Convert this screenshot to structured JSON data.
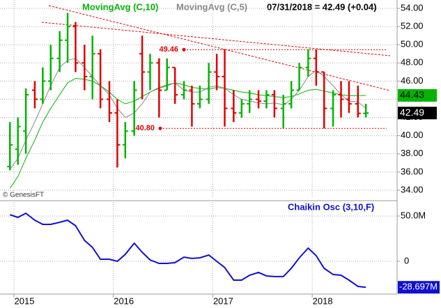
{
  "chart_data": [
    {
      "type": "ohlc",
      "ma_long_title": "MovingAvg (C,10)",
      "ma_short_title": "MovingAvg (C,5)",
      "quote": "07/31/2018 = 42.49 (+0.04)",
      "credit": "© GenesisFT",
      "x": [
        2014.96,
        2015.04,
        2015.12,
        2015.21,
        2015.29,
        2015.37,
        2015.46,
        2015.54,
        2015.62,
        2015.71,
        2015.79,
        2015.87,
        2015.96,
        2016.04,
        2016.12,
        2016.21,
        2016.29,
        2016.37,
        2016.46,
        2016.54,
        2016.62,
        2016.71,
        2016.79,
        2016.87,
        2016.96,
        2017.04,
        2017.12,
        2017.21,
        2017.29,
        2017.37,
        2017.46,
        2017.54,
        2017.62,
        2017.71,
        2017.79,
        2017.87,
        2017.96,
        2018.04,
        2018.12,
        2018.21,
        2018.29,
        2018.37,
        2018.46,
        2018.54
      ],
      "open": [
        36.6,
        38.5,
        40.5,
        45.0,
        44.0,
        46.0,
        48.5,
        50.5,
        52.0,
        48.0,
        46.5,
        49.0,
        44.0,
        42.5,
        39.0,
        40.5,
        49.0,
        47.0,
        48.0,
        45.0,
        47.5,
        44.5,
        45.0,
        43.5,
        44.0,
        47.0,
        46.5,
        43.0,
        42.5,
        43.5,
        44.0,
        43.8,
        44.5,
        43.0,
        43.5,
        45.0,
        47.5,
        48.5,
        47.0,
        43.0,
        44.5,
        44.0,
        43.5,
        42.45
      ],
      "high": [
        41.5,
        42.0,
        45.2,
        46.0,
        47.5,
        50.0,
        51.5,
        53.5,
        52.5,
        50.0,
        51.0,
        49.5,
        46.0,
        44.0,
        41.5,
        46.0,
        51.0,
        49.0,
        48.5,
        48.5,
        47.5,
        46.0,
        45.5,
        45.5,
        48.0,
        49.0,
        49.5,
        45.0,
        44.0,
        45.0,
        45.0,
        45.0,
        45.0,
        44.5,
        46.0,
        48.0,
        49.5,
        49.46,
        47.0,
        45.0,
        46.0,
        46.0,
        45.5,
        43.5
      ],
      "low": [
        36.2,
        36.8,
        38.0,
        43.0,
        43.5,
        45.0,
        47.0,
        48.0,
        47.0,
        45.0,
        44.0,
        43.0,
        41.5,
        36.5,
        37.5,
        40.0,
        44.0,
        45.0,
        42.0,
        45.0,
        43.5,
        44.0,
        41.0,
        43.0,
        43.5,
        45.0,
        41.0,
        41.5,
        42.0,
        42.5,
        43.0,
        43.0,
        42.0,
        40.8,
        43.0,
        45.0,
        46.5,
        45.5,
        40.8,
        41.0,
        42.0,
        42.5,
        42.0,
        42.0
      ],
      "close": [
        39.0,
        41.0,
        44.5,
        44.0,
        46.0,
        48.5,
        50.5,
        52.0,
        48.0,
        46.5,
        49.0,
        44.0,
        42.5,
        39.0,
        40.5,
        45.0,
        47.0,
        48.0,
        45.0,
        47.5,
        44.5,
        45.0,
        43.5,
        44.0,
        47.0,
        46.5,
        43.0,
        42.5,
        43.5,
        44.0,
        43.8,
        44.5,
        43.0,
        43.5,
        45.0,
        47.5,
        48.5,
        47.0,
        43.0,
        44.5,
        44.0,
        43.5,
        42.45,
        42.49
      ],
      "up_color": "#00b400",
      "down_color": "#e00000",
      "series": [
        {
          "name": "MovingAvg (C,10)",
          "color": "#00b400",
          "values": [
            34.2,
            35.5,
            37.5,
            39.5,
            41.5,
            43,
            44.5,
            45.8,
            46.3,
            46.2,
            46,
            45.5,
            44.8,
            44,
            43.5,
            43.8,
            44.3,
            44.8,
            45.2,
            45.5,
            45.8,
            45.6,
            45.3,
            45.2,
            45.1,
            45.3,
            45.2,
            45,
            44.8,
            44.7,
            44.5,
            44.4,
            44.3,
            44.2,
            44.3,
            44.6,
            45,
            45.1,
            44.9,
            44.7,
            44.5,
            44.4,
            44.4,
            44.43
          ]
        },
        {
          "name": "MovingAvg (C,5)",
          "color": "#888888",
          "values": [
            36.3,
            37.5,
            39.5,
            41.5,
            43.5,
            45.5,
            47.5,
            48.3,
            48.5,
            47.5,
            46.5,
            45.5,
            44.5,
            43,
            42,
            42.5,
            43.5,
            44.8,
            45.3,
            45.6,
            45.8,
            45,
            44.8,
            44.8,
            45.3,
            45.5,
            45.2,
            44.5,
            44,
            43.8,
            43.6,
            43.5,
            43.6,
            43.4,
            44,
            45,
            46.5,
            47.2,
            46.5,
            45.5,
            44.5,
            43.8,
            43.7,
            43
          ]
        }
      ],
      "levels": [
        49.46,
        {
          "value": 40.8,
          "label": "40.80"
        }
      ],
      "level_color": "#e00000",
      "xlim": [
        2014.86,
        2018.854
      ],
      "xticks": [
        2015,
        2016,
        2017,
        2018
      ],
      "ylim": [
        33.08,
        54.92
      ],
      "yticks": [
        {
          "value": 34,
          "label": "34.00"
        },
        {
          "value": 36,
          "label": "36.00"
        },
        {
          "value": 38,
          "label": "38.00"
        },
        {
          "value": 40,
          "label": "40.00"
        },
        {
          "value": 42,
          "label": "42.00"
        },
        {
          "value": 44,
          "label": "44.00"
        },
        {
          "value": 46,
          "label": "46.00"
        },
        {
          "value": 48,
          "label": "48.00"
        },
        {
          "value": 50,
          "label": "50.00"
        },
        {
          "value": 52,
          "label": "52.00"
        },
        {
          "value": 54,
          "label": "54.00"
        }
      ],
      "grid": true
    },
    {
      "type": "line",
      "title": "Chaikin Osc (3,10,F)",
      "x": [
        2014.96,
        2015.04,
        2015.12,
        2015.21,
        2015.29,
        2015.37,
        2015.46,
        2015.54,
        2015.62,
        2015.71,
        2015.79,
        2015.87,
        2015.96,
        2016.04,
        2016.12,
        2016.21,
        2016.29,
        2016.37,
        2016.46,
        2016.54,
        2016.62,
        2016.71,
        2016.79,
        2016.87,
        2016.96,
        2017.04,
        2017.12,
        2017.21,
        2017.29,
        2017.37,
        2017.46,
        2017.54,
        2017.62,
        2017.71,
        2017.79,
        2017.87,
        2017.96,
        2018.04,
        2018.12,
        2018.21,
        2018.29,
        2018.37,
        2018.46,
        2018.54
      ],
      "series": [
        {
          "name": "Chaikin Osc (3,10,F)",
          "color": "#1010d0",
          "values": [
            51500000,
            48500000,
            53100000,
            45400000,
            40800000,
            40800000,
            43100000,
            45400000,
            39200000,
            23100000,
            15400000,
            2300000,
            2300000,
            0,
            7700000,
            20000000,
            10000000,
            1500000,
            -2300000,
            -2300000,
            -1500000,
            4600000,
            3100000,
            3800000,
            6900000,
            0,
            -6900000,
            -20800000,
            -20800000,
            -15400000,
            -12300000,
            -16200000,
            -16900000,
            -16900000,
            -7700000,
            3800000,
            14600000,
            6200000,
            -7700000,
            -14600000,
            -15400000,
            -20800000,
            -27700000,
            -28697000
          ],
          "value_labels": [
            null,
            null,
            null,
            null,
            null,
            null,
            null,
            null,
            null,
            null,
            null,
            null,
            null,
            null,
            null,
            null,
            null,
            null,
            null,
            null,
            null,
            null,
            null,
            null,
            null,
            null,
            null,
            null,
            null,
            null,
            null,
            null,
            null,
            null,
            null,
            null,
            null,
            null,
            null,
            null,
            null,
            null,
            null,
            "-28.697M"
          ]
        }
      ],
      "xlim": [
        2014.86,
        2018.854
      ],
      "xticks": [
        2015,
        2016,
        2017,
        2018
      ],
      "ylim": [
        -36200000,
        65400000
      ],
      "yticks": [
        {
          "value": 50000000,
          "label": "50.0M"
        },
        0
      ],
      "grid": true
    }
  ]
}
